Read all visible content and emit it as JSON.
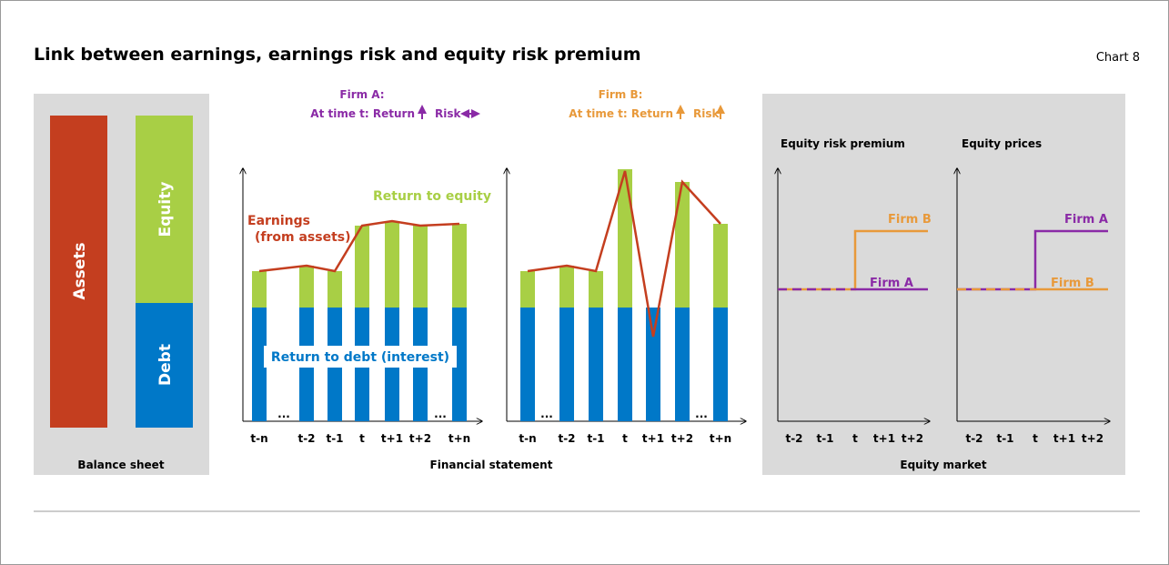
{
  "header": {
    "title": "Link between earnings, earnings risk and equity risk premium",
    "chart_label": "Chart 8"
  },
  "balance_sheet": {
    "assets": "Assets",
    "equity": "Equity",
    "debt": "Debt",
    "caption": "Balance sheet"
  },
  "financial_statement": {
    "firm_a": {
      "name": "Firm A:",
      "line": "At time t: Return",
      "risk": "Risk"
    },
    "firm_b": {
      "name": "Firm B:",
      "line": "At time t: Return",
      "risk": "Risk"
    },
    "return_to_equity": "Return to equity",
    "earnings": [
      "Earnings",
      "(from assets)"
    ],
    "return_to_debt": "Return to debt (interest)",
    "ellipsis": "...",
    "periods": [
      "t-n",
      "t-2",
      "t-1",
      "t",
      "t+1",
      "t+2",
      "t+n"
    ],
    "caption": "Financial statement"
  },
  "equity_market": {
    "erp": {
      "title": "Equity risk premium",
      "upper": "Firm B",
      "lower": "Firm A"
    },
    "prices": {
      "title": "Equity prices",
      "upper": "Firm A",
      "lower": "Firm B"
    },
    "periods": [
      "t-2",
      "t-1",
      "t",
      "t+1",
      "t+2"
    ],
    "caption": "Equity market"
  }
}
